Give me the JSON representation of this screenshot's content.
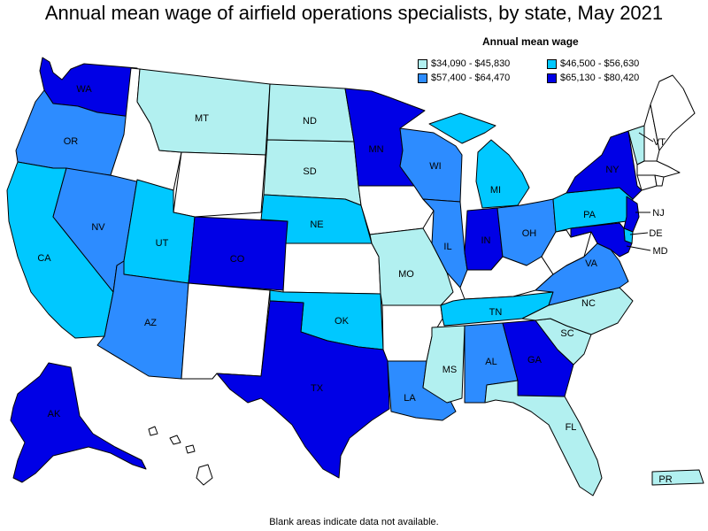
{
  "title": "Annual mean wage of airfield operations specialists, by state, May 2021",
  "legend": {
    "title": "Annual mean wage",
    "items": [
      {
        "label": "$34,090 - $45,830",
        "color": "#b2f0f0"
      },
      {
        "label": "$46,500 - $56,630",
        "color": "#00c8ff"
      },
      {
        "label": "$57,400 - $64,470",
        "color": "#2d8cff"
      },
      {
        "label": "$65,130 - $80,420",
        "color": "#0000e6"
      }
    ]
  },
  "footnote": "Blank areas indicate data not available.",
  "colors": {
    "nodata": "#ffffff",
    "stroke": "#000000"
  },
  "states": {
    "WA": "$65,130 - $80,420",
    "OR": "$57,400 - $64,470",
    "CA": "$46,500 - $56,630",
    "NV": "$57,400 - $64,470",
    "AZ": "$57,400 - $64,470",
    "UT": "$46,500 - $56,630",
    "MT": "$34,090 - $45,830",
    "CO": "$65,130 - $80,420",
    "ND": "$34,090 - $45,830",
    "SD": "$34,090 - $45,830",
    "NE": "$46,500 - $56,630",
    "MN": "$65,130 - $80,420",
    "MO": "$34,090 - $45,830",
    "OK": "$46,500 - $56,630",
    "TX": "$65,130 - $80,420",
    "WI": "$57,400 - $64,470",
    "IL": "$57,400 - $64,470",
    "IN": "$65,130 - $80,420",
    "MI": "$46,500 - $56,630",
    "OH": "$57,400 - $64,470",
    "PA": "$46,500 - $56,630",
    "NY": "$65,130 - $80,420",
    "VT": "$34,090 - $45,830",
    "NJ": "$65,130 - $80,420",
    "DE": "$46,500 - $56,630",
    "MD": "$65,130 - $80,420",
    "VA": "$57,400 - $64,470",
    "NC": "$34,090 - $45,830",
    "SC": "$34,090 - $45,830",
    "TN": "$46,500 - $56,630",
    "MS": "$34,090 - $45,830",
    "AL": "$57,400 - $64,470",
    "GA": "$65,130 - $80,420",
    "LA": "$57,400 - $64,470",
    "FL": "$34,090 - $45,830",
    "AK": "$65,130 - $80,420",
    "PR": "$34,090 - $45,830",
    "ID": "",
    "WY": "",
    "NM": "",
    "KS": "",
    "IA": "",
    "AR": "",
    "KY": "",
    "WV": "",
    "ME": "",
    "NH": "",
    "MA": "",
    "CT": "",
    "RI": "",
    "HI": ""
  }
}
